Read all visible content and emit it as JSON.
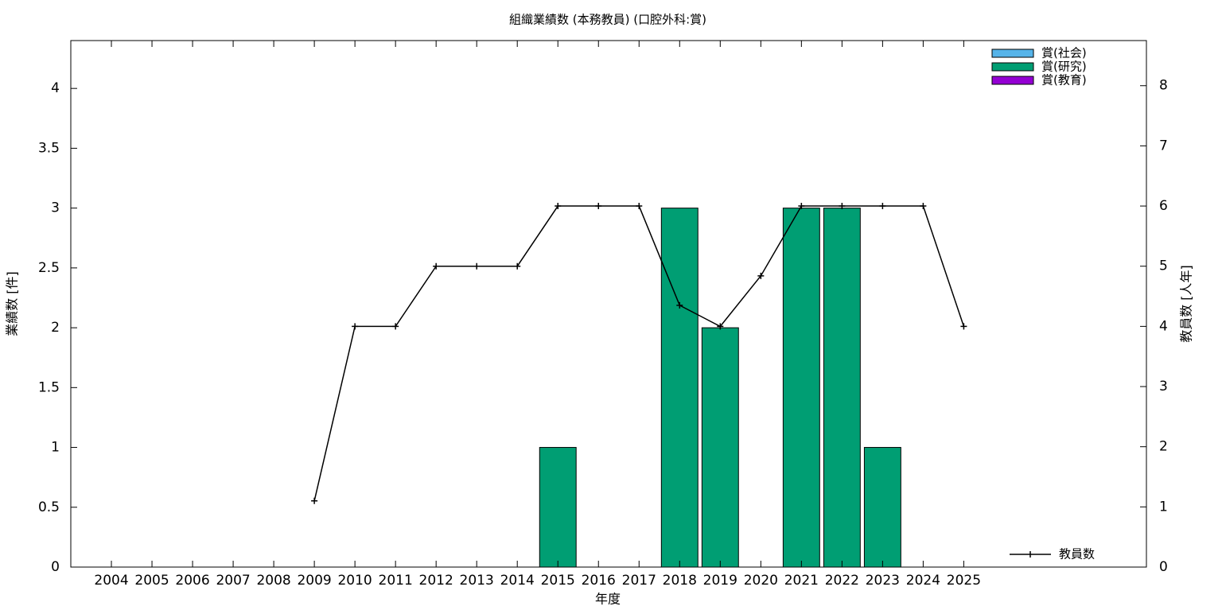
{
  "chart_data": {
    "type": "bar_line",
    "title": "組織業績数 (本務教員) (口腔外科:賞)",
    "xlabel": "年度",
    "ylabel": "業績数 [件]",
    "y2label": "教員数 [人年]",
    "x": [
      2004,
      2005,
      2006,
      2007,
      2008,
      2009,
      2010,
      2011,
      2012,
      2013,
      2014,
      2015,
      2016,
      2017,
      2018,
      2019,
      2020,
      2021,
      2022,
      2023,
      2024,
      2025
    ],
    "xlim": [
      2003,
      2029.5
    ],
    "xticks": [
      2004,
      2005,
      2006,
      2007,
      2008,
      2009,
      2010,
      2011,
      2012,
      2013,
      2014,
      2015,
      2016,
      2017,
      2018,
      2019,
      2020,
      2021,
      2022,
      2023,
      2024,
      2025
    ],
    "ylim": [
      0,
      4.4
    ],
    "yticks": [
      0,
      0.5,
      1,
      1.5,
      2,
      2.5,
      3,
      3.5,
      4
    ],
    "y2lim": [
      0,
      8.75
    ],
    "y2ticks": [
      0,
      1,
      2,
      3,
      4,
      5,
      6,
      7,
      8
    ],
    "series": [
      {
        "name": "賞(社会)",
        "color": "#56b4e9",
        "values": [
          0,
          0,
          0,
          0,
          0,
          0,
          0,
          0,
          0,
          0,
          0,
          0,
          0,
          0,
          0,
          0,
          0,
          0,
          0,
          0,
          0,
          0
        ]
      },
      {
        "name": "賞(研究)",
        "color": "#009e73",
        "values": [
          0,
          0,
          0,
          0,
          0,
          0,
          0,
          0,
          0,
          0,
          0,
          1,
          0,
          0,
          3,
          2,
          0,
          3,
          3,
          1,
          0,
          0
        ]
      },
      {
        "name": "賞(教育)",
        "color": "#9400d3",
        "values": [
          0,
          0,
          0,
          0,
          0,
          0,
          0,
          0,
          0,
          0,
          0,
          0,
          0,
          0,
          0,
          0,
          0,
          0,
          0,
          0,
          0,
          0
        ]
      },
      {
        "name": "教員数",
        "color": "#000000",
        "axis": "y2",
        "type": "line",
        "values": [
          null,
          null,
          null,
          null,
          null,
          1.1,
          4,
          4,
          5,
          5,
          5,
          6,
          6,
          6,
          4.35,
          4,
          4.84,
          6,
          6,
          6,
          6,
          4
        ]
      }
    ]
  }
}
